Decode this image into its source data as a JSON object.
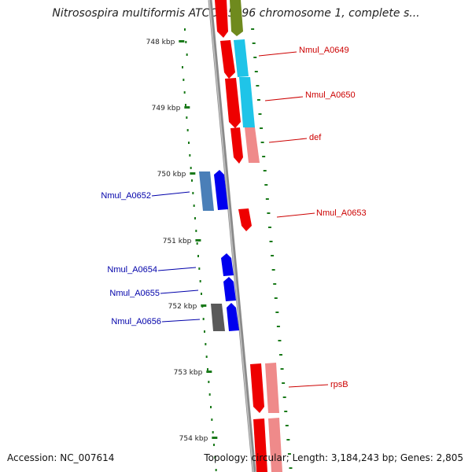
{
  "title": "Nitrosospira multiformis ATCC 25196 chromosome 1, complete s...",
  "footer": {
    "accession": "Accession: NC_007614",
    "summary": "Topology: circular; Length: 3,184,243 bp; Genes: 2,805"
  },
  "ticks": [
    "748 kbp",
    "749 kbp",
    "750 kbp",
    "751 kbp",
    "752 kbp",
    "753 kbp",
    "754 kbp"
  ],
  "colors": {
    "forward_label": "#cc0000",
    "reverse_label": "#0000aa",
    "tick_dots": "#1a7a1a",
    "backbone": "#8a8a8a"
  },
  "genes": [
    {
      "label": "Nmul_A0649",
      "strand": "forward"
    },
    {
      "label": "Nmul_A0650",
      "strand": "forward"
    },
    {
      "label": "def",
      "strand": "forward"
    },
    {
      "label": "Nmul_A0652",
      "strand": "reverse"
    },
    {
      "label": "Nmul_A0653",
      "strand": "forward"
    },
    {
      "label": "Nmul_A0654",
      "strand": "reverse"
    },
    {
      "label": "Nmul_A0655",
      "strand": "reverse"
    },
    {
      "label": "Nmul_A0656",
      "strand": "reverse"
    },
    {
      "label": "rpsB",
      "strand": "forward"
    }
  ]
}
